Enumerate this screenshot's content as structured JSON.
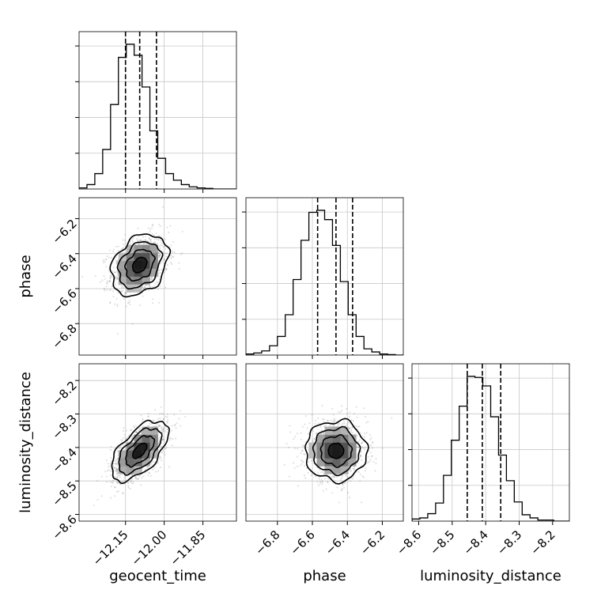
{
  "chart_data": {
    "type": "corner",
    "parameters": [
      "geocent_time",
      "phase",
      "luminosity_distance"
    ],
    "axis_labels": {
      "geocent_time": "geocent_time",
      "phase": "phase",
      "luminosity_distance": "luminosity_distance"
    },
    "ranges": {
      "geocent_time": [
        -12.33,
        -11.72
      ],
      "phase": [
        -6.98,
        -6.08
      ],
      "luminosity_distance": [
        -8.62,
        -8.15
      ]
    },
    "ticks": {
      "geocent_time": [
        "−12.15",
        "−12.00",
        "−11.85"
      ],
      "phase": [
        "−6.8",
        "−6.6",
        "−6.4",
        "−6.2"
      ],
      "luminosity_distance": [
        "−8.6",
        "−8.5",
        "−8.4",
        "−8.3",
        "−8.2"
      ]
    },
    "tick_values": {
      "geocent_time": [
        -12.15,
        -12.0,
        -11.85
      ],
      "phase": [
        -6.8,
        -6.6,
        -6.4,
        -6.2
      ],
      "luminosity_distance": [
        -8.6,
        -8.5,
        -8.4,
        -8.3,
        -8.2
      ]
    },
    "quantiles": {
      "geocent_time": [
        -12.15,
        -12.095,
        -12.03
      ],
      "phase": [
        -6.57,
        -6.465,
        -6.37
      ],
      "luminosity_distance": [
        -8.455,
        -8.41,
        -8.355
      ]
    },
    "histograms": {
      "geocent_time": {
        "bin_start": -12.33,
        "bin_width": 0.0305,
        "counts": [
          1,
          4,
          14,
          36,
          77,
          120,
          132,
          122,
          93,
          53,
          28,
          14,
          8,
          4,
          2,
          1,
          0.5,
          0,
          0,
          0
        ]
      },
      "phase": {
        "bin_start": -6.98,
        "bin_width": 0.045,
        "counts": [
          1,
          2,
          4,
          9,
          18,
          39,
          73,
          111,
          138,
          140,
          131,
          106,
          71,
          39,
          18,
          6,
          3,
          1,
          0.5,
          0
        ]
      },
      "luminosity_distance": {
        "bin_start": -8.62,
        "bin_width": 0.0235,
        "counts": [
          2,
          3,
          7,
          17,
          43,
          76,
          108,
          136,
          135,
          127,
          98,
          62,
          38,
          18,
          6,
          3,
          1,
          1,
          0,
          0
        ]
      }
    },
    "posterior_2d": {
      "geocent_time_phase": {
        "mean": [
          -12.095,
          -6.465
        ],
        "std": [
          0.055,
          0.088
        ],
        "corr": 0.3
      },
      "geocent_time_luminosity_distance": {
        "mean": [
          -12.095,
          -8.41
        ],
        "std": [
          0.055,
          0.045
        ],
        "corr": 0.6
      },
      "phase_luminosity_distance": {
        "mean": [
          -6.465,
          -8.41
        ],
        "std": [
          0.088,
          0.045
        ],
        "corr": 0.0
      }
    },
    "contour_levels_sigma": [
      0.5,
      1.0,
      1.5,
      2.0
    ],
    "grid": true,
    "legend": "none"
  }
}
